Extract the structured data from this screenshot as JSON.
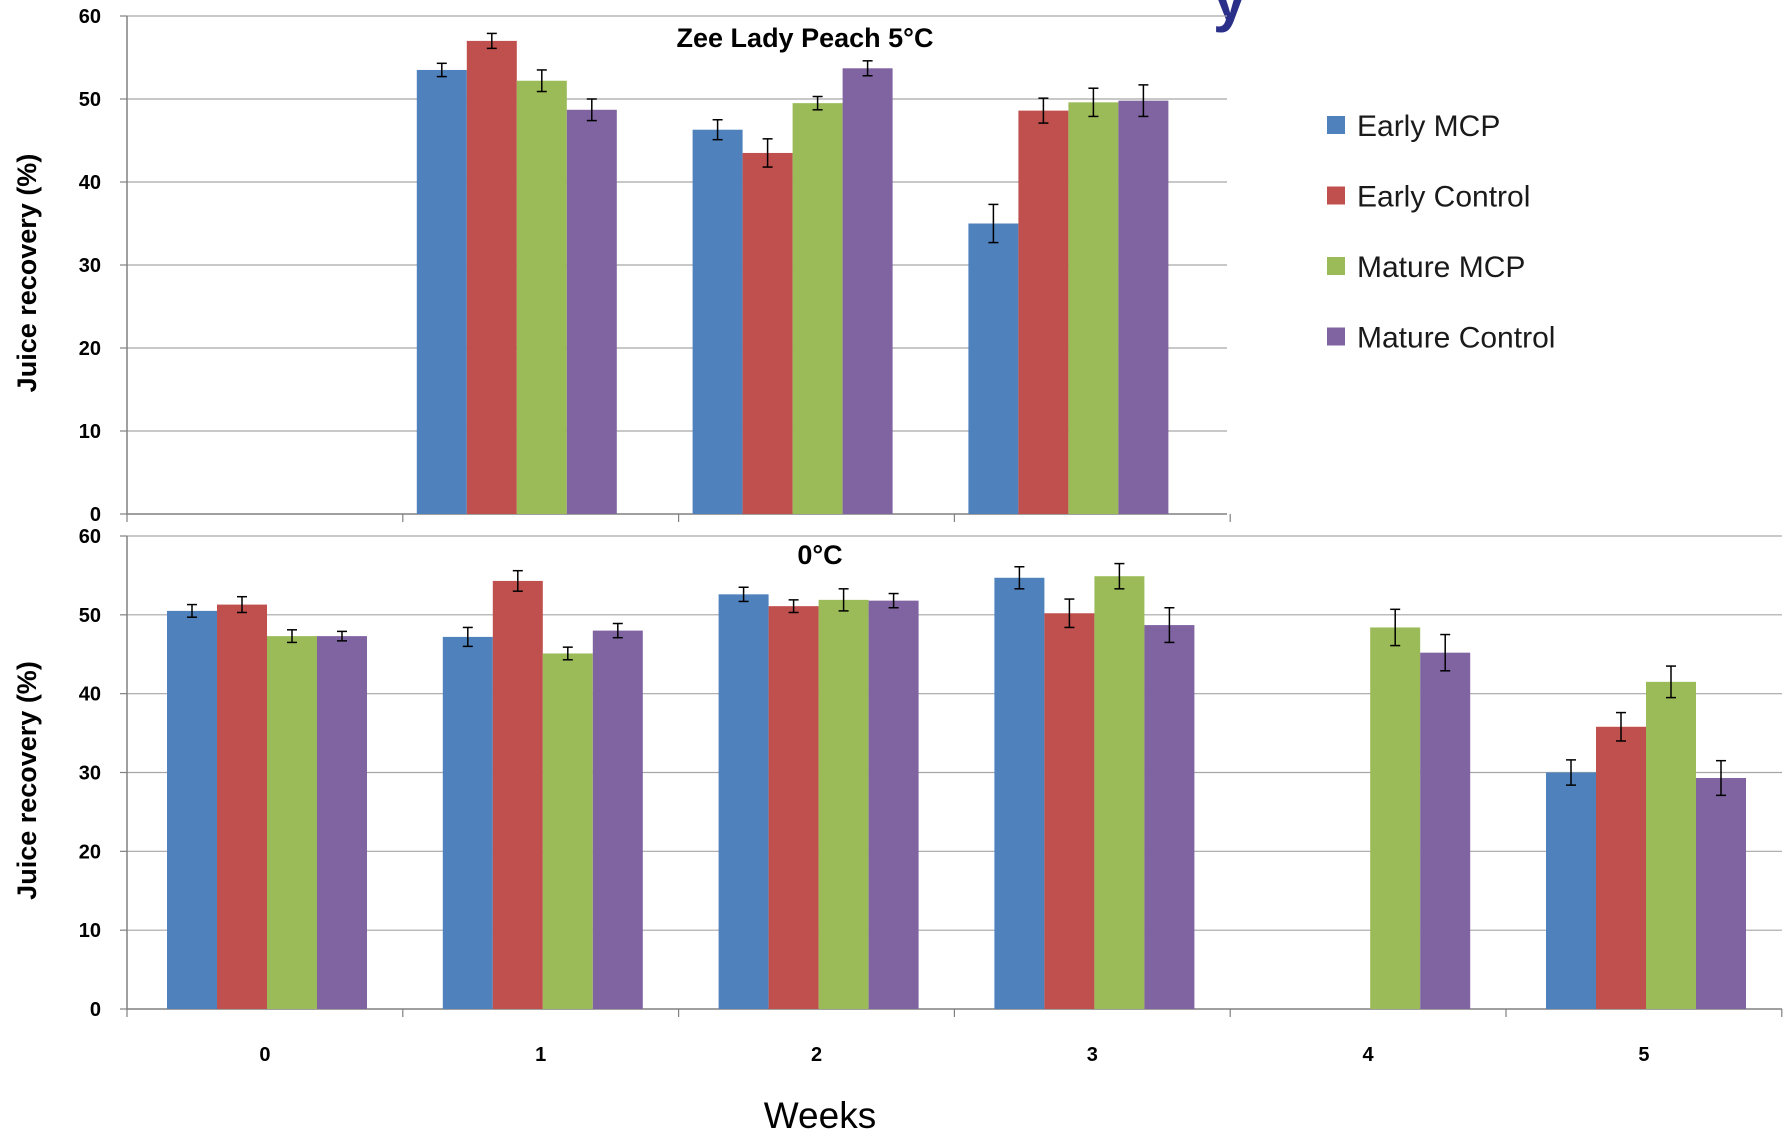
{
  "chart_data": [
    {
      "type": "bar",
      "title": "Zee Lady Peach 5°C",
      "ylabel": "Juice recovery (%)",
      "xlabel": "",
      "categories": [
        "0",
        "1",
        "2",
        "3"
      ],
      "ylim": [
        0,
        60
      ],
      "yticks": [
        "0",
        "10",
        "20",
        "30",
        "40",
        "50",
        "60"
      ],
      "grid": true,
      "series": [
        {
          "name": "Early MCP",
          "values": [
            null,
            53.5,
            46.3,
            35.0
          ],
          "errors": [
            null,
            0.8,
            1.2,
            2.3
          ]
        },
        {
          "name": "Early Control",
          "values": [
            null,
            57.0,
            43.5,
            48.6
          ],
          "errors": [
            null,
            0.9,
            1.7,
            1.5
          ]
        },
        {
          "name": "Mature MCP",
          "values": [
            null,
            52.2,
            49.5,
            49.6
          ],
          "errors": [
            null,
            1.3,
            0.8,
            1.7
          ]
        },
        {
          "name": "Mature Control",
          "values": [
            null,
            48.7,
            53.7,
            49.8
          ],
          "errors": [
            null,
            1.3,
            0.9,
            1.9
          ]
        }
      ]
    },
    {
      "type": "bar",
      "title": "0°C",
      "ylabel": "Juice recovery (%)",
      "xlabel": "Weeks",
      "categories": [
        "0",
        "1",
        "2",
        "3",
        "4",
        "5"
      ],
      "ylim": [
        0,
        60
      ],
      "yticks": [
        "0",
        "10",
        "20",
        "30",
        "40",
        "50",
        "60"
      ],
      "grid": true,
      "series": [
        {
          "name": "Early MCP",
          "values": [
            50.5,
            47.2,
            52.6,
            54.7,
            null,
            30.0
          ],
          "errors": [
            0.8,
            1.2,
            0.9,
            1.4,
            null,
            1.6
          ]
        },
        {
          "name": "Early Control",
          "values": [
            51.3,
            54.3,
            51.1,
            50.2,
            null,
            35.8
          ],
          "errors": [
            1.0,
            1.3,
            0.8,
            1.8,
            null,
            1.8
          ]
        },
        {
          "name": "Mature MCP",
          "values": [
            47.3,
            45.1,
            51.9,
            54.9,
            48.4,
            41.5
          ],
          "errors": [
            0.8,
            0.8,
            1.4,
            1.6,
            2.3,
            2.0
          ]
        },
        {
          "name": "Mature Control",
          "values": [
            47.3,
            48.0,
            51.8,
            48.7,
            45.2,
            29.3
          ],
          "errors": [
            0.6,
            0.9,
            0.9,
            2.2,
            2.3,
            2.2
          ]
        }
      ]
    }
  ],
  "legend": {
    "placement": "right",
    "items": [
      {
        "label": "Early MCP",
        "color": "#4f81bd"
      },
      {
        "label": "Early Control",
        "color": "#c0504d"
      },
      {
        "label": "Mature MCP",
        "color": "#9bbb59"
      },
      {
        "label": "Mature Control",
        "color": "#8064a2"
      }
    ]
  },
  "colors": {
    "series": [
      "#4f81bd",
      "#c0504d",
      "#9bbb59",
      "#8064a2"
    ],
    "grid": "#a6a6a6",
    "axis": "#808080",
    "glyph": "#2a2f8a"
  },
  "partial_glyph": "y"
}
